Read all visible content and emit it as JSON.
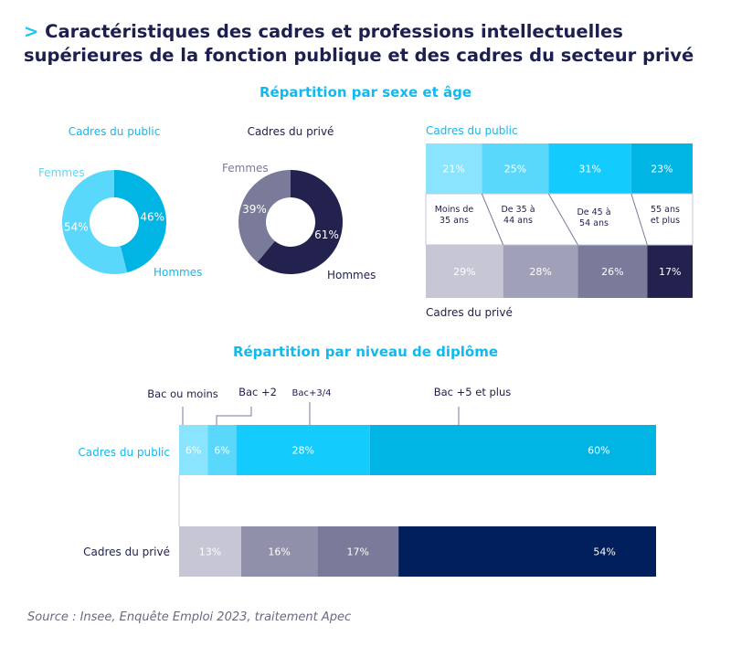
{
  "title_prefix": ">",
  "title_line1": "Caractéristiques des cadres et professions intellectuelles",
  "title_line2": "supérieures de la fonction publique et des cadres du secteur privé",
  "section1": "Répartition par sexe et âge",
  "section2": "Répartition par niveau de diplôme",
  "source": "Source :  Insee, Enquête Emploi 2023, traitement Apec",
  "colors": {
    "accent": "#13b8ee",
    "dark": "#1d1f4f"
  },
  "chart_data": [
    {
      "type": "pie",
      "title": "Cadres du public",
      "labels": [
        "Hommes",
        "Femmes"
      ],
      "values": [
        46,
        54
      ],
      "value_labels": [
        "46%",
        "54%"
      ],
      "colors": [
        "#00b5e4",
        "#5ad8fc"
      ]
    },
    {
      "type": "pie",
      "title": "Cadres du privé",
      "labels": [
        "Hommes",
        "Femmes"
      ],
      "values": [
        61,
        39
      ],
      "value_labels": [
        "61%",
        "39%"
      ],
      "colors": [
        "#23224f",
        "#7a7a9a"
      ]
    },
    {
      "type": "bar",
      "stacked": true,
      "categories": [
        "Moins de 35 ans",
        "De 35 à 44 ans",
        "De 45 à 54 ans",
        "55 ans et plus"
      ],
      "series": [
        {
          "name": "Cadres du public",
          "values": [
            21,
            25,
            31,
            23
          ],
          "labels": [
            "21%",
            "25%",
            "31%",
            "23%"
          ],
          "colors": [
            "#8ae4fd",
            "#5ad8fc",
            "#13cbfc",
            "#00b5e4"
          ]
        },
        {
          "name": "Cadres du privé",
          "values": [
            29,
            28,
            26,
            17
          ],
          "labels": [
            "29%",
            "28%",
            "26%",
            "17%"
          ],
          "colors": [
            "#c6c6d4",
            "#a0a0b8",
            "#7a7a9a",
            "#23224f"
          ]
        }
      ]
    },
    {
      "type": "bar",
      "stacked": true,
      "orientation": "horizontal",
      "categories": [
        "Bac ou moins",
        "Bac +2",
        "Bac+3/4",
        "Bac +5 et plus"
      ],
      "series": [
        {
          "name": "Cadres du public",
          "values": [
            6,
            6,
            28,
            60
          ],
          "labels": [
            "6%",
            "6%",
            "28%",
            "60%"
          ],
          "colors": [
            "#8ae4fd",
            "#5ad8fc",
            "#13cbfc",
            "#00b5e4"
          ]
        },
        {
          "name": "Cadres du privé",
          "values": [
            13,
            16,
            17,
            54
          ],
          "labels": [
            "13%",
            "16%",
            "17%",
            "54%"
          ],
          "colors": [
            "#c6c6d4",
            "#9090aa",
            "#7a7a9a",
            "#001f5c"
          ]
        }
      ]
    }
  ]
}
